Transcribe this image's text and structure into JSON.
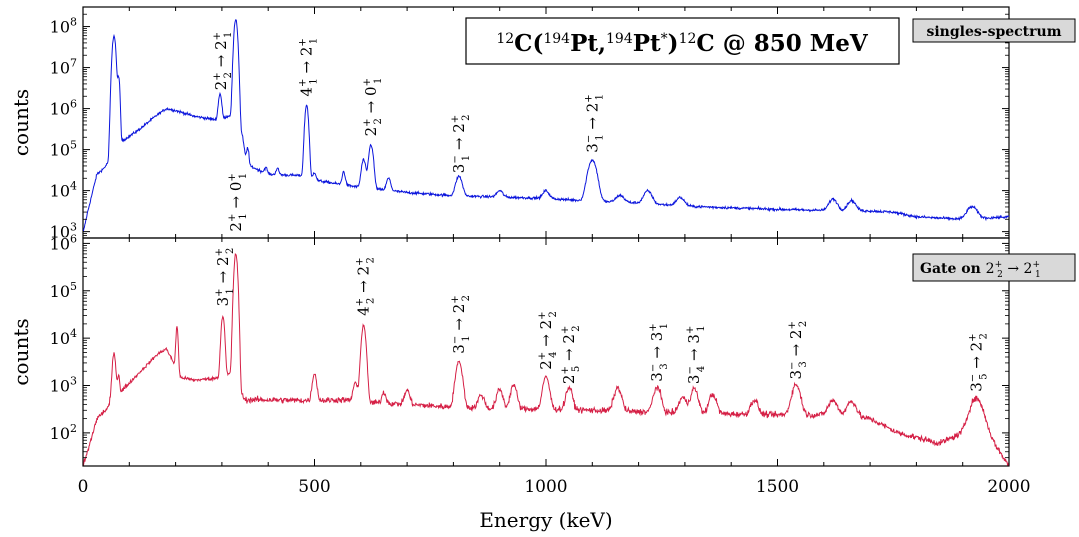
{
  "chart_data": [
    {
      "type": "line",
      "title": "12C(194Pt,194Pt*)12C @ 850 MeV",
      "title_parts": [
        {
          "text": "12",
          "sup": true
        },
        {
          "text": "C(",
          "sup": false
        },
        {
          "text": "194",
          "sup": true
        },
        {
          "text": "Pt,",
          "sup": false
        },
        {
          "text": "194",
          "sup": true
        },
        {
          "text": "Pt",
          "sup": false
        },
        {
          "text": "*",
          "sup": true
        },
        {
          "text": ")",
          "sup": false
        },
        {
          "text": "12",
          "sup": true
        },
        {
          "text": "C @ 850 MeV",
          "sup": false
        }
      ],
      "legend": "singles-spectrum",
      "legend_placement": "top-right",
      "ylabel": "counts",
      "yscale": "log",
      "ylim": [
        700,
        300000000
      ],
      "xlim": [
        0,
        2000
      ],
      "yticks": [
        {
          "value": 1000,
          "mant": "10",
          "exp": "3"
        },
        {
          "value": 10000,
          "mant": "10",
          "exp": "4"
        },
        {
          "value": 100000,
          "mant": "10",
          "exp": "5"
        },
        {
          "value": 1000000,
          "mant": "10",
          "exp": "6"
        },
        {
          "value": 10000000,
          "mant": "10",
          "exp": "7"
        },
        {
          "value": 100000000,
          "mant": "10",
          "exp": "8"
        }
      ],
      "color": "#0a14dc",
      "background": [
        [
          0,
          900
        ],
        [
          10,
          3000
        ],
        [
          30,
          25000
        ],
        [
          45,
          35000
        ],
        [
          55,
          50000
        ],
        [
          60,
          110000
        ],
        [
          80,
          150000
        ],
        [
          120,
          300000
        ],
        [
          160,
          700000
        ],
        [
          180,
          1000000
        ],
        [
          200,
          900000
        ],
        [
          240,
          650000
        ],
        [
          280,
          550000
        ],
        [
          300,
          500000
        ],
        [
          310,
          650000
        ],
        [
          330,
          700000
        ],
        [
          345,
          200000
        ],
        [
          350,
          80000
        ],
        [
          360,
          40000
        ],
        [
          400,
          25000
        ],
        [
          480,
          23000
        ],
        [
          500,
          18000
        ],
        [
          560,
          14000
        ],
        [
          600,
          12000
        ],
        [
          700,
          9000
        ],
        [
          800,
          7500
        ],
        [
          900,
          7000
        ],
        [
          1000,
          6500
        ],
        [
          1100,
          5500
        ],
        [
          1200,
          5000
        ],
        [
          1300,
          4200
        ],
        [
          1400,
          3800
        ],
        [
          1500,
          3500
        ],
        [
          1600,
          3300
        ],
        [
          1700,
          3200
        ],
        [
          1750,
          3000
        ],
        [
          1800,
          2300
        ],
        [
          1900,
          2000
        ],
        [
          2000,
          2300
        ]
      ],
      "peaks": [
        {
          "x": 67,
          "amp": 60000000,
          "w": 3
        },
        {
          "x": 77,
          "amp": 6000000,
          "w": 2
        },
        {
          "x": 296,
          "amp": 1800000,
          "w": 3
        },
        {
          "x": 330,
          "amp": 150000000,
          "w": 3
        },
        {
          "x": 356,
          "amp": 60000,
          "w": 2
        },
        {
          "x": 395,
          "amp": 10000,
          "w": 3
        },
        {
          "x": 420,
          "amp": 10000,
          "w": 3
        },
        {
          "x": 483,
          "amp": 1200000,
          "w": 3
        },
        {
          "x": 500,
          "amp": 10000,
          "w": 3
        },
        {
          "x": 563,
          "amp": 15000,
          "w": 3
        },
        {
          "x": 606,
          "amp": 45000,
          "w": 4
        },
        {
          "x": 622,
          "amp": 120000,
          "w": 4
        },
        {
          "x": 660,
          "amp": 10000,
          "w": 4
        },
        {
          "x": 812,
          "amp": 15000,
          "w": 6
        },
        {
          "x": 900,
          "amp": 3000,
          "w": 6
        },
        {
          "x": 1000,
          "amp": 3500,
          "w": 6
        },
        {
          "x": 1100,
          "amp": 50000,
          "w": 8
        },
        {
          "x": 1160,
          "amp": 2500,
          "w": 8
        },
        {
          "x": 1220,
          "amp": 5000,
          "w": 8
        },
        {
          "x": 1290,
          "amp": 2500,
          "w": 8
        },
        {
          "x": 1620,
          "amp": 3000,
          "w": 8
        },
        {
          "x": 1660,
          "amp": 2500,
          "w": 8
        },
        {
          "x": 1920,
          "amp": 2000,
          "w": 10
        }
      ],
      "annotations": [
        {
          "x": 298,
          "at_y": 2000000,
          "a": [
            "2",
            "2",
            "+"
          ],
          "b": [
            "2",
            "1",
            "+"
          ]
        },
        {
          "x": 483,
          "at_y": 1400000,
          "a": [
            "4",
            "1",
            "+"
          ],
          "b": [
            "2",
            "1",
            "+"
          ]
        },
        {
          "x": 622,
          "at_y": 150000,
          "a": [
            "2",
            "2",
            "+"
          ],
          "b": [
            "0",
            "1",
            "+"
          ]
        },
        {
          "x": 812,
          "at_y": 19000,
          "a": [
            "3",
            "1",
            "−"
          ],
          "b": [
            "2",
            "2",
            "+"
          ]
        },
        {
          "x": 1100,
          "at_y": 60000,
          "a": [
            "3",
            "1",
            "−"
          ],
          "b": [
            "2",
            "1",
            "+"
          ]
        }
      ]
    },
    {
      "type": "line",
      "legend_prefix": "Gate on",
      "legend_transition": {
        "a": [
          "2",
          "2",
          "+"
        ],
        "b": [
          "2",
          "1",
          "+"
        ]
      },
      "legend_placement": "top-right",
      "ylabel": "counts",
      "yscale": "log",
      "ylim": [
        20,
        1300000
      ],
      "xlim": [
        0,
        2000
      ],
      "xlabel": "Energy (keV)",
      "xticks": [
        "0",
        "500",
        "1000",
        "1500",
        "2000"
      ],
      "yticks": [
        {
          "value": 100,
          "mant": "10",
          "exp": "2"
        },
        {
          "value": 1000,
          "mant": "10",
          "exp": "3"
        },
        {
          "value": 10000,
          "mant": "10",
          "exp": "4"
        },
        {
          "value": 100000,
          "mant": "10",
          "exp": "5"
        },
        {
          "value": 1000000,
          "mant": "10",
          "exp": "6"
        }
      ],
      "color": "#d51f45",
      "background": [
        [
          0,
          20
        ],
        [
          10,
          40
        ],
        [
          30,
          200
        ],
        [
          55,
          350
        ],
        [
          65,
          700
        ],
        [
          80,
          700
        ],
        [
          120,
          1800
        ],
        [
          160,
          4500
        ],
        [
          180,
          6000
        ],
        [
          200,
          2500
        ],
        [
          210,
          1500
        ],
        [
          240,
          1300
        ],
        [
          280,
          1400
        ],
        [
          300,
          1500
        ],
        [
          320,
          1800
        ],
        [
          340,
          700
        ],
        [
          350,
          500
        ],
        [
          400,
          500
        ],
        [
          500,
          480
        ],
        [
          560,
          500
        ],
        [
          600,
          450
        ],
        [
          700,
          400
        ],
        [
          800,
          350
        ],
        [
          900,
          320
        ],
        [
          1000,
          320
        ],
        [
          1100,
          300
        ],
        [
          1200,
          280
        ],
        [
          1300,
          260
        ],
        [
          1400,
          250
        ],
        [
          1500,
          240
        ],
        [
          1600,
          240
        ],
        [
          1700,
          200
        ],
        [
          1760,
          100
        ],
        [
          1800,
          80
        ],
        [
          1850,
          60
        ],
        [
          1900,
          100
        ],
        [
          1920,
          150
        ],
        [
          1960,
          80
        ],
        [
          2000,
          20
        ]
      ],
      "peaks": [
        {
          "x": 67,
          "amp": 4000,
          "w": 3
        },
        {
          "x": 77,
          "amp": 1000,
          "w": 2
        },
        {
          "x": 203,
          "amp": 15000,
          "w": 2
        },
        {
          "x": 302,
          "amp": 28000,
          "w": 3
        },
        {
          "x": 330,
          "amp": 600000,
          "w": 3
        },
        {
          "x": 500,
          "amp": 1300,
          "w": 4
        },
        {
          "x": 588,
          "amp": 700,
          "w": 4
        },
        {
          "x": 606,
          "amp": 18000,
          "w": 4
        },
        {
          "x": 650,
          "amp": 300,
          "w": 4
        },
        {
          "x": 700,
          "amp": 400,
          "w": 5
        },
        {
          "x": 812,
          "amp": 2800,
          "w": 6
        },
        {
          "x": 860,
          "amp": 300,
          "w": 6
        },
        {
          "x": 900,
          "amp": 500,
          "w": 6
        },
        {
          "x": 930,
          "amp": 700,
          "w": 6
        },
        {
          "x": 1000,
          "amp": 1200,
          "w": 6
        },
        {
          "x": 1050,
          "amp": 600,
          "w": 6
        },
        {
          "x": 1155,
          "amp": 600,
          "w": 7
        },
        {
          "x": 1240,
          "amp": 650,
          "w": 7
        },
        {
          "x": 1295,
          "amp": 300,
          "w": 7
        },
        {
          "x": 1320,
          "amp": 600,
          "w": 7
        },
        {
          "x": 1360,
          "amp": 400,
          "w": 7
        },
        {
          "x": 1450,
          "amp": 250,
          "w": 7
        },
        {
          "x": 1540,
          "amp": 800,
          "w": 8
        },
        {
          "x": 1620,
          "amp": 250,
          "w": 9
        },
        {
          "x": 1660,
          "amp": 250,
          "w": 9
        },
        {
          "x": 1930,
          "amp": 400,
          "w": 12
        }
      ],
      "annotations": [
        {
          "x": 302,
          "at_y": 35000,
          "a": [
            "3",
            "1",
            "+"
          ],
          "b": [
            "2",
            "2",
            "+"
          ]
        },
        {
          "x": 330,
          "at_y": 900000,
          "a": [
            "2",
            "1",
            "+"
          ],
          "b": [
            "0",
            "1",
            "+"
          ],
          "dy": -8
        },
        {
          "x": 606,
          "at_y": 22000,
          "a": [
            "4",
            "2",
            "+"
          ],
          "b": [
            "2",
            "2",
            "+"
          ]
        },
        {
          "x": 812,
          "at_y": 3500,
          "a": [
            "3",
            "1",
            "−"
          ],
          "b": [
            "2",
            "2",
            "+"
          ]
        },
        {
          "x": 1000,
          "at_y": 1600,
          "a": [
            "2",
            "4",
            "+"
          ],
          "b": [
            "2",
            "2",
            "+"
          ]
        },
        {
          "x": 1050,
          "at_y": 800,
          "a": [
            "2",
            "5",
            "+"
          ],
          "b": [
            "2",
            "2",
            "+"
          ]
        },
        {
          "x": 1240,
          "at_y": 900,
          "a": [
            "3",
            "3",
            "−"
          ],
          "b": [
            "3",
            "1",
            "+"
          ]
        },
        {
          "x": 1320,
          "at_y": 800,
          "a": [
            "3",
            "4",
            "−"
          ],
          "b": [
            "3",
            "1",
            "+"
          ]
        },
        {
          "x": 1540,
          "at_y": 1000,
          "a": [
            "3",
            "3",
            "−"
          ],
          "b": [
            "2",
            "2",
            "+"
          ]
        },
        {
          "x": 1930,
          "at_y": 550,
          "a": [
            "3",
            "5",
            "−"
          ],
          "b": [
            "2",
            "2",
            "+"
          ]
        }
      ]
    }
  ]
}
